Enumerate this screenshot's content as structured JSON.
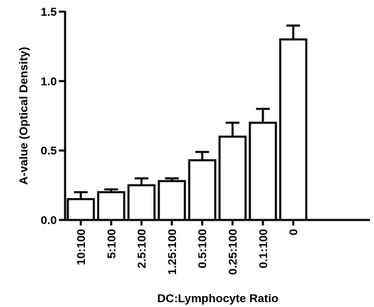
{
  "chart_data": {
    "type": "bar",
    "categories": [
      "10:100",
      "5:100",
      "2.5:100",
      "1.25:100",
      "0.5:100",
      "0.25:100",
      "0.1:100",
      "0"
    ],
    "values": [
      0.15,
      0.2,
      0.25,
      0.28,
      0.43,
      0.6,
      0.7,
      1.3
    ],
    "errors": [
      0.05,
      0.02,
      0.05,
      0.02,
      0.06,
      0.1,
      0.1,
      0.1
    ],
    "title": "",
    "xlabel": "DC:Lymphocyte Ratio",
    "ylabel": "A-value (Optical Density)",
    "ylim": [
      0,
      1.5
    ],
    "yticks": [
      "0.0",
      "0.5",
      "1.0",
      "1.5"
    ],
    "grid": false,
    "bar_fill": "#ffffff",
    "bar_stroke": "#000000"
  }
}
